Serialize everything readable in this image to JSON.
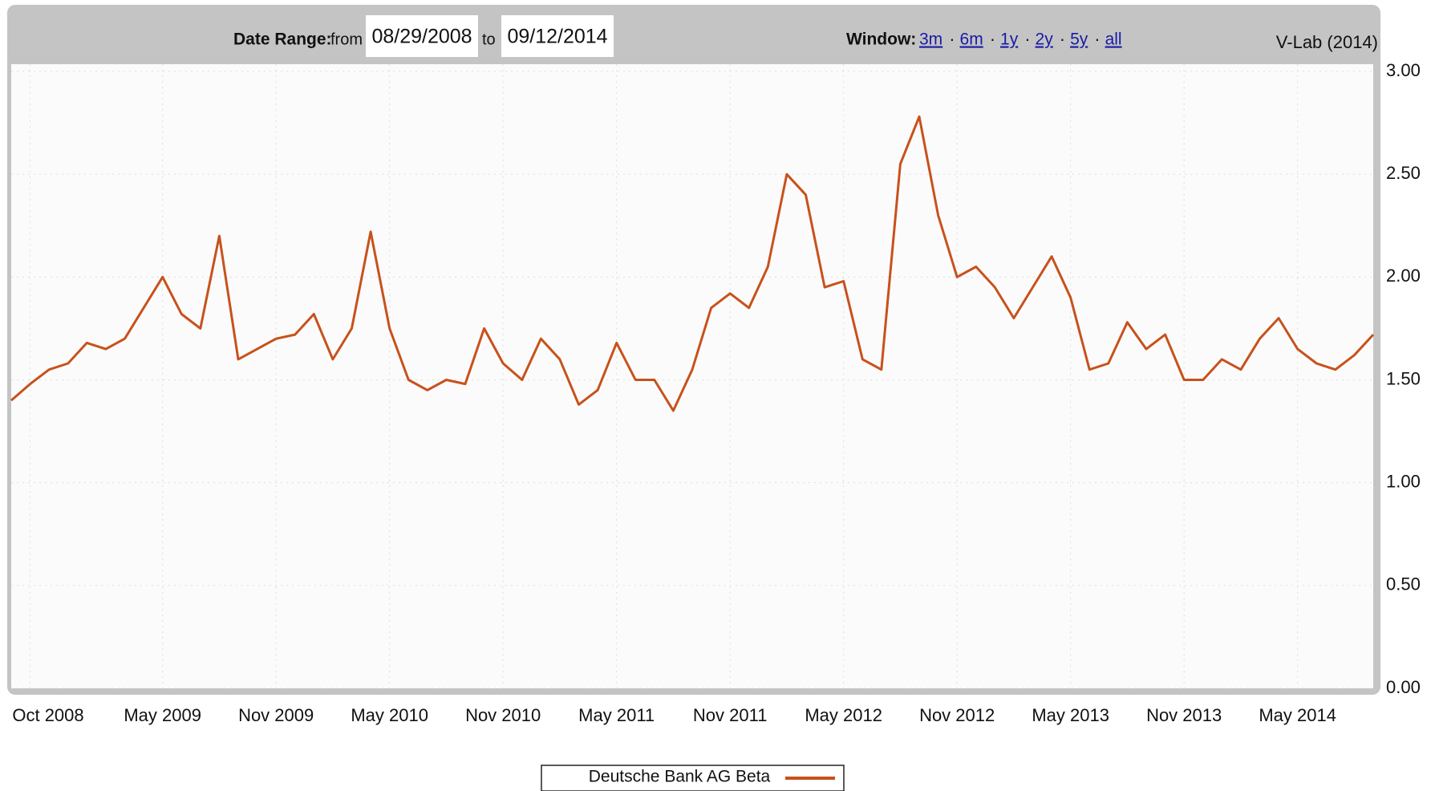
{
  "controls": {
    "date_label": "Date Range:",
    "from_label": "from",
    "from": "08/29/2008",
    "to_label": "to",
    "to": "09/12/2014",
    "window_label": "Window:",
    "windows": [
      "3m",
      "6m",
      "1y",
      "2y",
      "5y",
      "all"
    ],
    "separator": "·",
    "credit": "V-Lab (2014)"
  },
  "chart_data": {
    "type": "line",
    "x": [
      "2008-09",
      "2008-10",
      "2008-11",
      "2008-12",
      "2009-01",
      "2009-02",
      "2009-03",
      "2009-04",
      "2009-05",
      "2009-06",
      "2009-07",
      "2009-08",
      "2009-09",
      "2009-10",
      "2009-11",
      "2009-12",
      "2010-01",
      "2010-02",
      "2010-03",
      "2010-04",
      "2010-05",
      "2010-06",
      "2010-07",
      "2010-08",
      "2010-09",
      "2010-10",
      "2010-11",
      "2010-12",
      "2011-01",
      "2011-02",
      "2011-03",
      "2011-04",
      "2011-05",
      "2011-06",
      "2011-07",
      "2011-08",
      "2011-09",
      "2011-10",
      "2011-11",
      "2011-12",
      "2012-01",
      "2012-02",
      "2012-03",
      "2012-04",
      "2012-05",
      "2012-06",
      "2012-07",
      "2012-08",
      "2012-09",
      "2012-10",
      "2012-11",
      "2012-12",
      "2013-01",
      "2013-02",
      "2013-03",
      "2013-04",
      "2013-05",
      "2013-06",
      "2013-07",
      "2013-08",
      "2013-09",
      "2013-10",
      "2013-11",
      "2013-12",
      "2014-01",
      "2014-02",
      "2014-03",
      "2014-04",
      "2014-05",
      "2014-06",
      "2014-07",
      "2014-08",
      "2014-09"
    ],
    "series": [
      {
        "name": "Deutsche Bank AG Beta",
        "color": "#c8511b",
        "values": [
          1.4,
          1.48,
          1.55,
          1.58,
          1.68,
          1.65,
          1.7,
          1.85,
          2.0,
          1.82,
          1.75,
          2.2,
          1.6,
          1.65,
          1.7,
          1.72,
          1.82,
          1.6,
          1.75,
          2.22,
          1.75,
          1.5,
          1.45,
          1.5,
          1.48,
          1.75,
          1.58,
          1.5,
          1.7,
          1.6,
          1.38,
          1.45,
          1.68,
          1.5,
          1.5,
          1.35,
          1.55,
          1.85,
          1.92,
          1.85,
          2.05,
          2.5,
          2.4,
          1.95,
          1.98,
          1.6,
          1.55,
          2.55,
          2.78,
          2.3,
          2.0,
          2.05,
          1.95,
          1.8,
          1.95,
          2.1,
          1.9,
          1.55,
          1.58,
          1.78,
          1.65,
          1.72,
          1.5,
          1.5,
          1.6,
          1.55,
          1.7,
          1.8,
          1.65,
          1.58,
          1.55,
          1.62,
          1.72
        ]
      }
    ],
    "xlim": [
      "2008-09",
      "2014-09"
    ],
    "xticks": [
      {
        "value": "2008-10",
        "label": "Oct 2008"
      },
      {
        "value": "2009-05",
        "label": "May 2009"
      },
      {
        "value": "2009-11",
        "label": "Nov 2009"
      },
      {
        "value": "2010-05",
        "label": "May 2010"
      },
      {
        "value": "2010-11",
        "label": "Nov 2010"
      },
      {
        "value": "2011-05",
        "label": "May 2011"
      },
      {
        "value": "2011-11",
        "label": "Nov 2011"
      },
      {
        "value": "2012-05",
        "label": "May 2012"
      },
      {
        "value": "2012-11",
        "label": "Nov 2012"
      },
      {
        "value": "2013-05",
        "label": "May 2013"
      },
      {
        "value": "2013-11",
        "label": "Nov 2013"
      },
      {
        "value": "2014-05",
        "label": "May 2014"
      }
    ],
    "ylim": [
      0,
      3
    ],
    "yticks": [
      {
        "value": 0,
        "label": "0.00"
      },
      {
        "value": 0.5,
        "label": "0.50"
      },
      {
        "value": 1,
        "label": "1.00"
      },
      {
        "value": 1.5,
        "label": "1.50"
      },
      {
        "value": 2,
        "label": "2.00"
      },
      {
        "value": 2.5,
        "label": "2.50"
      },
      {
        "value": 3,
        "label": "3.00"
      }
    ],
    "grid": true
  }
}
